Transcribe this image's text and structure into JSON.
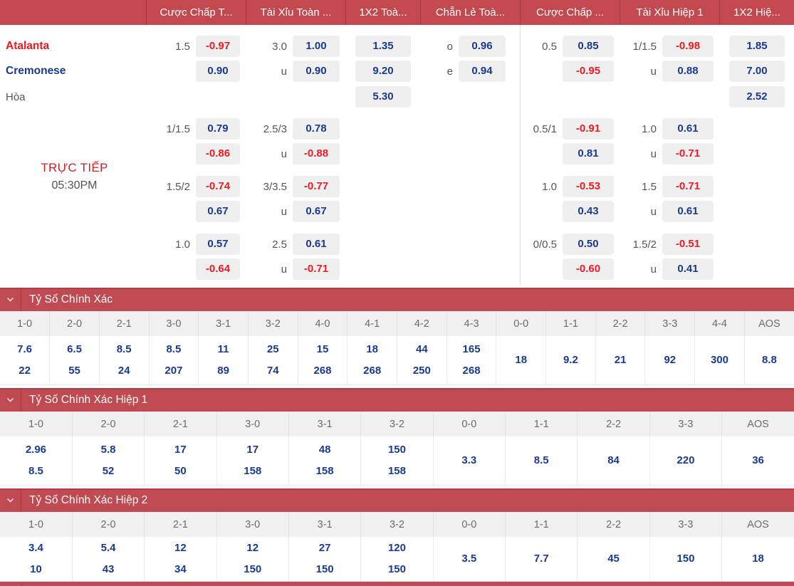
{
  "colors": {
    "header_red": "#c4494f",
    "section_red": "#c04a51",
    "odds_positive_blue": "#1a3a8f",
    "odds_negative_red": "#ed1b24",
    "pill_background": "#efefef"
  },
  "odds_header": {
    "columns": [
      "Cược Chấp T...",
      "Tài Xỉu Toàn ...",
      "1X2 Toà...",
      "Chẵn Lẻ Toà...",
      "Cược Chấp ...",
      "Tài Xỉu Hiệp 1",
      "1X2 Hiệ..."
    ]
  },
  "live": {
    "label": "TRỰC TIẾP",
    "time": "05:30PM"
  },
  "odds": {
    "rows": [
      {
        "team": "Atalanta",
        "team_color": "red",
        "cells": [
          [
            "1.5",
            "-0.97"
          ],
          [
            "3.0",
            "1.00"
          ],
          [
            "",
            "1.35"
          ],
          [
            "o",
            "0.96"
          ],
          [
            "0.5",
            "0.85"
          ],
          [
            "1/1.5",
            "-0.98"
          ],
          [
            "",
            "1.85"
          ]
        ]
      },
      {
        "team": "Cremonese",
        "team_color": "blue",
        "cells": [
          [
            "",
            "0.90"
          ],
          [
            "u",
            "0.90"
          ],
          [
            "",
            "9.20"
          ],
          [
            "e",
            "0.94"
          ],
          [
            "",
            "-0.95"
          ],
          [
            "u",
            "0.88"
          ],
          [
            "",
            "7.00"
          ]
        ]
      },
      {
        "team": "Hòa",
        "team_color": "gray",
        "cells": [
          null,
          null,
          [
            "",
            "5.30"
          ],
          null,
          null,
          null,
          [
            "",
            "2.52"
          ]
        ]
      },
      {
        "team": "",
        "cells": [
          [
            "1/1.5",
            "0.79"
          ],
          [
            "2.5/3",
            "0.78"
          ],
          null,
          null,
          [
            "0.5/1",
            "-0.91"
          ],
          [
            "1.0",
            "0.61"
          ],
          null
        ]
      },
      {
        "team": "",
        "cells": [
          [
            "",
            "-0.86"
          ],
          [
            "u",
            "-0.88"
          ],
          null,
          null,
          [
            "",
            "0.81"
          ],
          [
            "u",
            "-0.71"
          ],
          null
        ]
      },
      {
        "team": "",
        "cells": [
          [
            "1.5/2",
            "-0.74"
          ],
          [
            "3/3.5",
            "-0.77"
          ],
          null,
          null,
          [
            "1.0",
            "-0.53"
          ],
          [
            "1.5",
            "-0.71"
          ],
          null
        ]
      },
      {
        "team": "",
        "cells": [
          [
            "",
            "0.67"
          ],
          [
            "u",
            "0.67"
          ],
          null,
          null,
          [
            "",
            "0.43"
          ],
          [
            "u",
            "0.61"
          ],
          null
        ]
      },
      {
        "team": "",
        "cells": [
          [
            "1.0",
            "0.57"
          ],
          [
            "2.5",
            "0.61"
          ],
          null,
          null,
          [
            "0/0.5",
            "0.50"
          ],
          [
            "1.5/2",
            "-0.51"
          ],
          null
        ]
      },
      {
        "team": "",
        "cells": [
          [
            "",
            "-0.64"
          ],
          [
            "u",
            "-0.71"
          ],
          null,
          null,
          [
            "",
            "-0.60"
          ],
          [
            "u",
            "0.41"
          ],
          null
        ]
      }
    ]
  },
  "sections": [
    {
      "title": "Tỷ Số Chính Xác",
      "columns": [
        {
          "score": "1-0",
          "odds": [
            "7.6",
            "22"
          ]
        },
        {
          "score": "2-0",
          "odds": [
            "6.5",
            "55"
          ]
        },
        {
          "score": "2-1",
          "odds": [
            "8.5",
            "24"
          ]
        },
        {
          "score": "3-0",
          "odds": [
            "8.5",
            "207"
          ]
        },
        {
          "score": "3-1",
          "odds": [
            "11",
            "89"
          ]
        },
        {
          "score": "3-2",
          "odds": [
            "25",
            "74"
          ]
        },
        {
          "score": "4-0",
          "odds": [
            "15",
            "268"
          ]
        },
        {
          "score": "4-1",
          "odds": [
            "18",
            "268"
          ]
        },
        {
          "score": "4-2",
          "odds": [
            "44",
            "250"
          ]
        },
        {
          "score": "4-3",
          "odds": [
            "165",
            "268"
          ]
        },
        {
          "score": "0-0",
          "odds": [
            "18"
          ]
        },
        {
          "score": "1-1",
          "odds": [
            "9.2"
          ]
        },
        {
          "score": "2-2",
          "odds": [
            "21"
          ]
        },
        {
          "score": "3-3",
          "odds": [
            "92"
          ]
        },
        {
          "score": "4-4",
          "odds": [
            "300"
          ]
        },
        {
          "score": "AOS",
          "odds": [
            "8.8"
          ]
        }
      ]
    },
    {
      "title": "Tỷ Số Chính Xác Hiệp 1",
      "columns": [
        {
          "score": "1-0",
          "odds": [
            "2.96",
            "8.5"
          ]
        },
        {
          "score": "2-0",
          "odds": [
            "5.8",
            "52"
          ]
        },
        {
          "score": "2-1",
          "odds": [
            "17",
            "50"
          ]
        },
        {
          "score": "3-0",
          "odds": [
            "17",
            "158"
          ]
        },
        {
          "score": "3-1",
          "odds": [
            "48",
            "158"
          ]
        },
        {
          "score": "3-2",
          "odds": [
            "150",
            "158"
          ]
        },
        {
          "score": "0-0",
          "odds": [
            "3.3"
          ]
        },
        {
          "score": "1-1",
          "odds": [
            "8.5"
          ]
        },
        {
          "score": "2-2",
          "odds": [
            "84"
          ]
        },
        {
          "score": "3-3",
          "odds": [
            "220"
          ]
        },
        {
          "score": "AOS",
          "odds": [
            "36"
          ]
        }
      ]
    },
    {
      "title": "Tỷ Số Chính Xác Hiệp 2",
      "columns": [
        {
          "score": "1-0",
          "odds": [
            "3.4",
            "10"
          ]
        },
        {
          "score": "2-0",
          "odds": [
            "5.4",
            "43"
          ]
        },
        {
          "score": "2-1",
          "odds": [
            "12",
            "34"
          ]
        },
        {
          "score": "3-0",
          "odds": [
            "12",
            "150"
          ]
        },
        {
          "score": "3-1",
          "odds": [
            "27",
            "150"
          ]
        },
        {
          "score": "3-2",
          "odds": [
            "120",
            "150"
          ]
        },
        {
          "score": "0-0",
          "odds": [
            "3.5"
          ]
        },
        {
          "score": "1-1",
          "odds": [
            "7.7"
          ]
        },
        {
          "score": "2-2",
          "odds": [
            "45"
          ]
        },
        {
          "score": "3-3",
          "odds": [
            "150"
          ]
        },
        {
          "score": "AOS",
          "odds": [
            "18"
          ]
        }
      ]
    }
  ]
}
